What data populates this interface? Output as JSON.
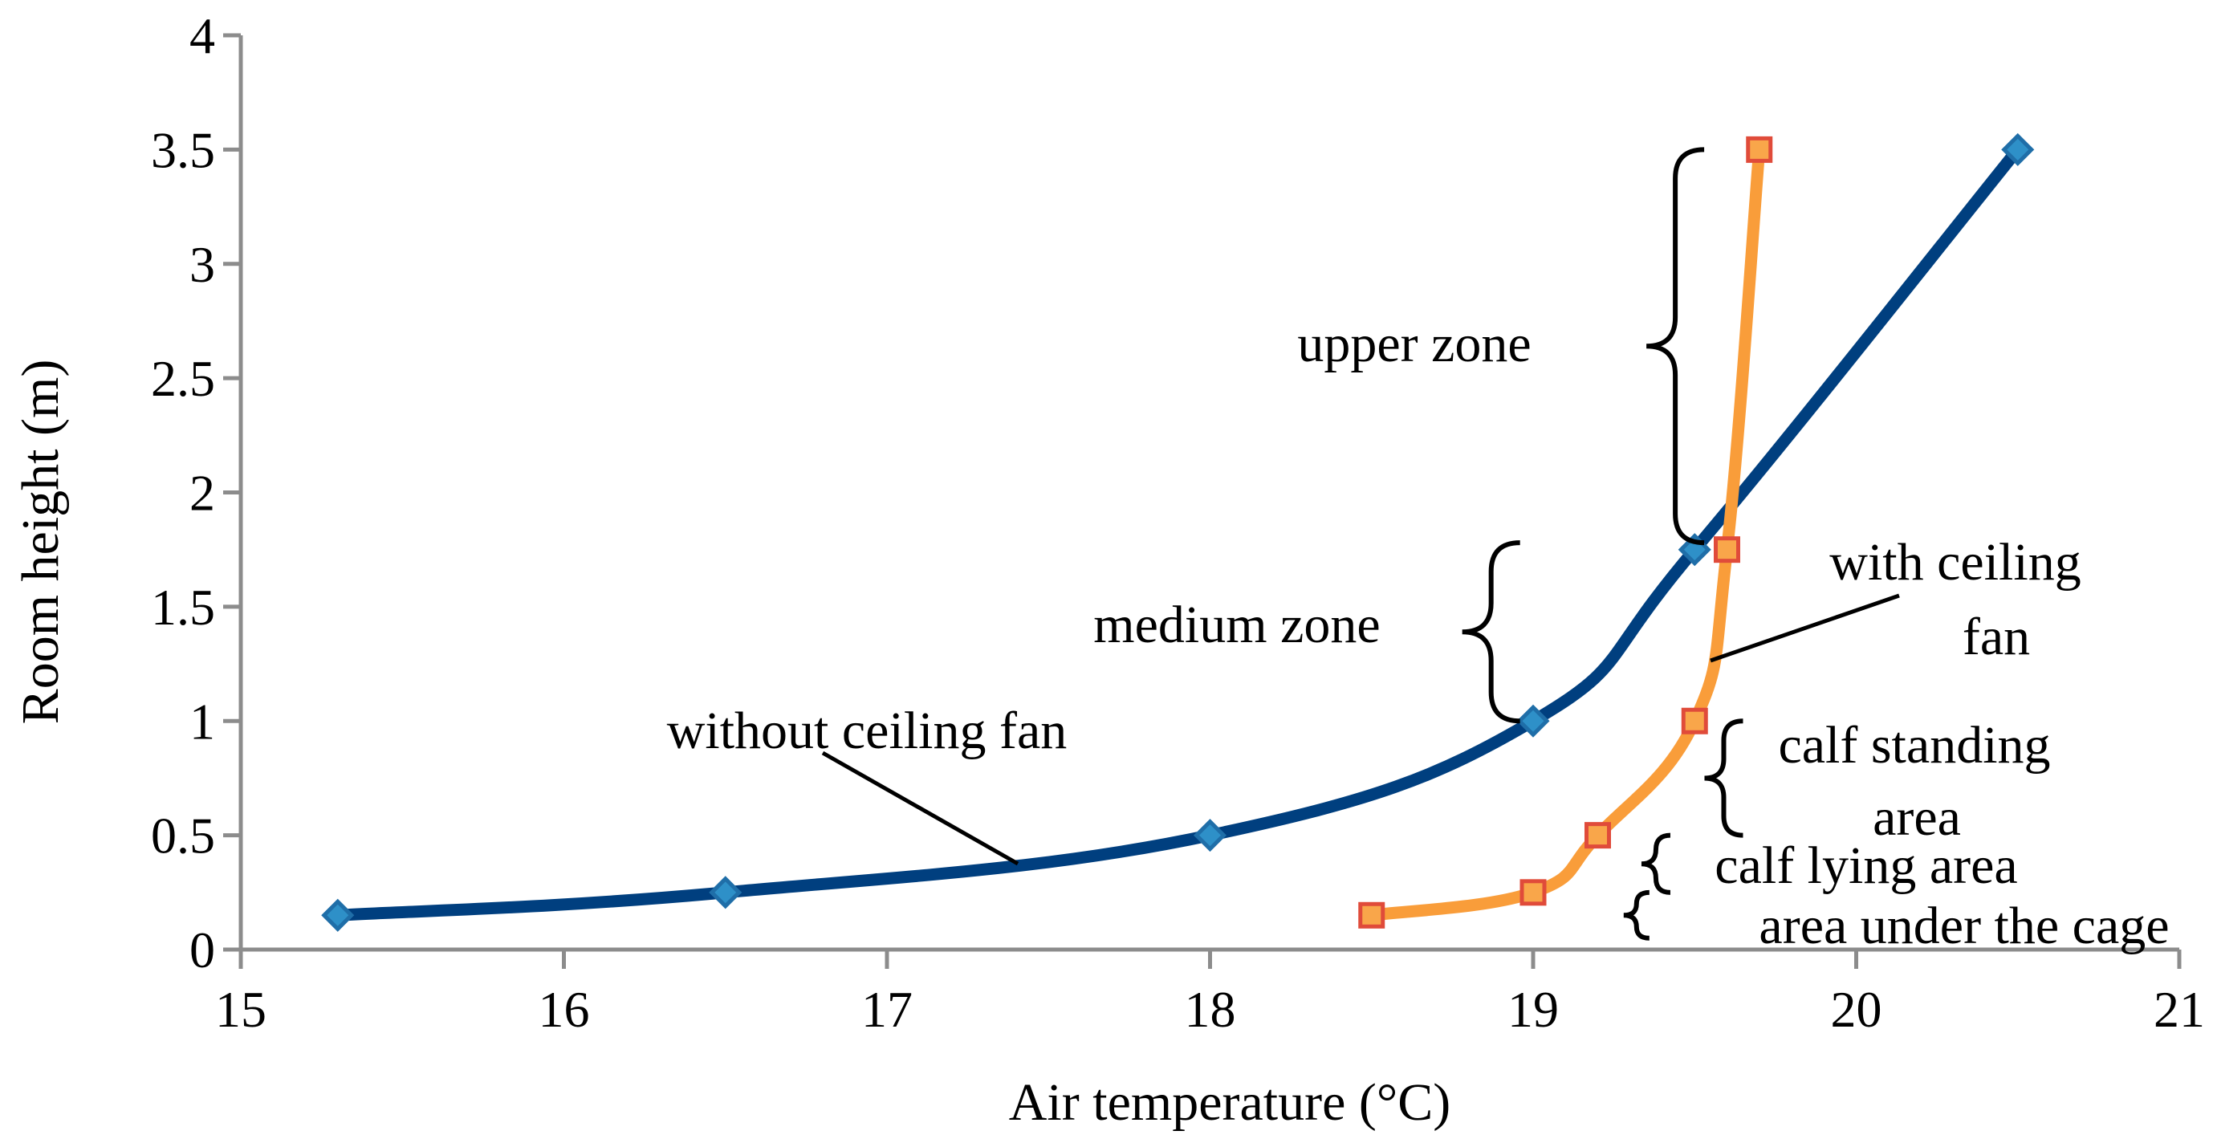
{
  "chart_data": {
    "type": "line",
    "title": "",
    "xlabel": "Air temperature (°C)",
    "ylabel": "Room height (m)",
    "xlim": [
      15,
      21
    ],
    "ylim": [
      0,
      4
    ],
    "xticks": [
      {
        "value": 15,
        "label": "15"
      },
      {
        "value": 16,
        "label": "16"
      },
      {
        "value": 17,
        "label": "17"
      },
      {
        "value": 18,
        "label": "18"
      },
      {
        "value": 19,
        "label": "19"
      },
      {
        "value": 20,
        "label": "20"
      },
      {
        "value": 21,
        "label": "21"
      }
    ],
    "yticks": [
      {
        "value": 0,
        "label": "0"
      },
      {
        "value": 0.5,
        "label": "0.5"
      },
      {
        "value": 1,
        "label": "1"
      },
      {
        "value": 1.5,
        "label": "1.5"
      },
      {
        "value": 2,
        "label": "2"
      },
      {
        "value": 2.5,
        "label": "2.5"
      },
      {
        "value": 3,
        "label": "3"
      },
      {
        "value": 3.5,
        "label": "3.5"
      },
      {
        "value": 4,
        "label": "4"
      }
    ],
    "grid": false,
    "series": [
      {
        "name": "without ceiling fan",
        "color": "#003f7f",
        "marker": "diamond",
        "marker_fill": "#2e90c8",
        "x": [
          15.3,
          16.5,
          18.0,
          19.0,
          19.5,
          20.5
        ],
        "y": [
          0.15,
          0.25,
          0.5,
          1.0,
          1.75,
          3.5
        ]
      },
      {
        "name": "with ceiling fan",
        "color": "#f99d3a",
        "marker": "square",
        "marker_fill": "#f9a64a",
        "marker_edge": "#e04b3a",
        "x": [
          18.5,
          19.0,
          19.2,
          19.5,
          19.6,
          19.7
        ],
        "y": [
          0.15,
          0.25,
          0.5,
          1.0,
          1.75,
          3.5
        ]
      }
    ],
    "annotations": {
      "without_fan": "without ceiling fan",
      "with_fan_line1": "with ceiling",
      "with_fan_line2": "fan",
      "upper_zone": "upper zone",
      "medium_zone": "medium zone",
      "calf_standing_line1": "calf standing",
      "calf_standing_line2": "area",
      "calf_lying": "calf lying area",
      "under_cage": "area under the cage"
    },
    "zones": [
      {
        "name": "upper zone",
        "y_from": 1.78,
        "y_to": 3.5,
        "brace_x": 19.44
      },
      {
        "name": "medium zone",
        "y_from": 1.0,
        "y_to": 1.78,
        "brace_x": 18.87
      },
      {
        "name": "calf standing area",
        "y_from": 0.5,
        "y_to": 1.0,
        "brace_x": 19.59
      },
      {
        "name": "calf lying area",
        "y_from": 0.25,
        "y_to": 0.5,
        "brace_x": 19.38
      },
      {
        "name": "area under the cage",
        "y_from": 0.05,
        "y_to": 0.25,
        "brace_x": 19.32
      }
    ]
  }
}
